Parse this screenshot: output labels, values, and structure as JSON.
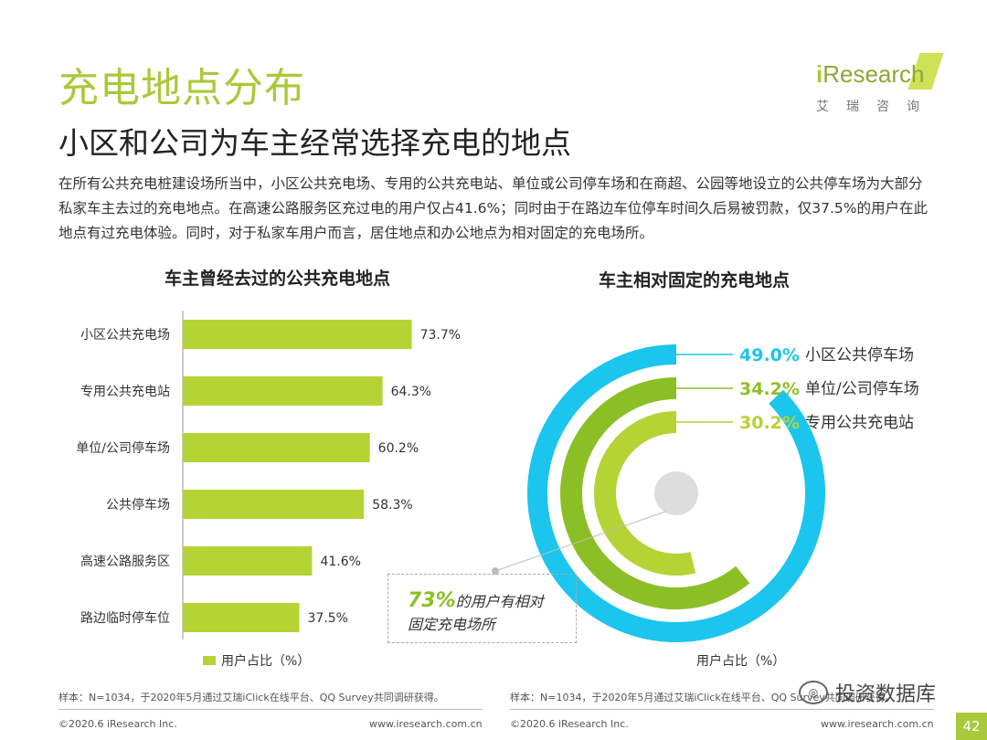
{
  "header": {
    "title": "充电地点分布",
    "subtitle": "小区和公司为车主经常选择充电的地点",
    "intro": "在所有公共充电桩建设场所当中，小区公共充电场、专用的公共充电站、单位或公司停车场和在商超、公园等地设立的公共停车场为大部分私家车主去过的充电地点。在高速公路服务区充过电的用户仅占41.6%；同时由于在路边车位停车时间久后易被罚款，仅37.5%的用户在此地点有过充电体验。同时，对于私家车用户而言，居住地点和办公地点为相对固定的充电场所。"
  },
  "logo": {
    "i": "i",
    "word": "Research",
    "cn": "艾瑞咨询"
  },
  "colors": {
    "brand": "#a9c93a",
    "bar": "#b5d334",
    "outer": "#1bc5ee",
    "middle": "#8cbf26",
    "inner": "#b5d334",
    "center": "#dddddd"
  },
  "chart_data": [
    {
      "type": "bar",
      "orientation": "horizontal",
      "title": "车主曾经去过的公共充电地点",
      "categories": [
        "小区公共充电场",
        "专用公共充电站",
        "单位/公司停车场",
        "公共停车场",
        "高速公路服务区",
        "路边临时停车位"
      ],
      "values": [
        73.7,
        64.3,
        60.2,
        58.3,
        41.6,
        37.5
      ],
      "value_labels": [
        "73.7%",
        "64.3%",
        "60.2%",
        "58.3%",
        "41.6%",
        "37.5%"
      ],
      "legend": "用户占比（%）",
      "xlim": [
        0,
        100
      ]
    },
    {
      "type": "pie",
      "style": "radial-bar",
      "title": "车主相对固定的充电地点",
      "categories": [
        "小区公共停车场",
        "单位/公司停车场",
        "专用公共充电站"
      ],
      "values": [
        49.0,
        34.2,
        30.2
      ],
      "value_labels": [
        "49.0%",
        "34.2%",
        "30.2%"
      ],
      "legend": "用户占比（%）",
      "annotation": {
        "pct": "73%",
        "line1": "的用户有相对",
        "line2": "固定充电场所"
      }
    }
  ],
  "footer": {
    "note_left": "样本：N=1034，于2020年5月通过艾瑞iClick在线平台、QQ Survey共同调研获得。",
    "note_right": "样本：N=1034，于2020年5月通过艾瑞iClick在线平台、QQ Survey共同调研获得。",
    "copyright_left": "©2020.6 iResearch Inc.",
    "site_left": "www.iresearch.com.cn",
    "copyright_right": "©2020.6 iResearch Inc.",
    "site_right": "www.iresearch.com.cn",
    "watermark": "投资数据库",
    "page_number": "42"
  }
}
